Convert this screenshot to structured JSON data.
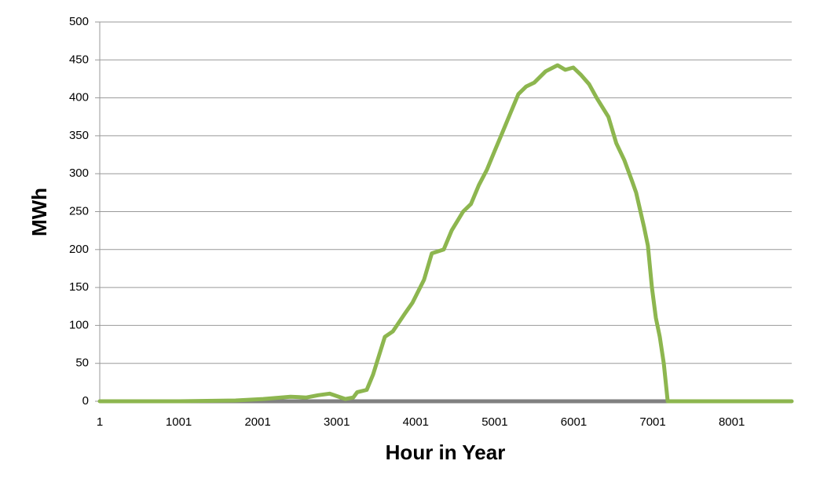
{
  "chart_data": {
    "type": "line",
    "x_label": "Hour in Year",
    "y_label": "MWh",
    "xlim": [
      1,
      8760
    ],
    "xticks": [
      1,
      1001,
      2001,
      3001,
      4001,
      5001,
      6001,
      7001,
      8001
    ],
    "ylim": [
      0,
      500
    ],
    "yticks": [
      0,
      50,
      100,
      150,
      200,
      250,
      300,
      350,
      400,
      450,
      500
    ],
    "grid": true,
    "series": [
      {
        "name": "MWh",
        "color": "#8db64f",
        "x": [
          1,
          1001,
          1720,
          2070,
          2415,
          2615,
          2765,
          2910,
          3110,
          3210,
          3260,
          3380,
          3460,
          3610,
          3710,
          3860,
          3960,
          4105,
          4205,
          4355,
          4455,
          4600,
          4700,
          4800,
          4900,
          5000,
          5100,
          5200,
          5300,
          5400,
          5500,
          5645,
          5795,
          5895,
          5995,
          6095,
          6195,
          6290,
          6440,
          6540,
          6640,
          6740,
          6790,
          6890,
          6940,
          6990,
          7040,
          7090,
          7140,
          7190,
          8000,
          8760
        ],
        "values": [
          0,
          0,
          1,
          3,
          6,
          5,
          8,
          10,
          3,
          5,
          12,
          15,
          35,
          85,
          92,
          115,
          130,
          160,
          195,
          200,
          225,
          250,
          260,
          285,
          305,
          330,
          355,
          380,
          405,
          415,
          420,
          435,
          443,
          437,
          440,
          430,
          418,
          400,
          375,
          340,
          318,
          290,
          275,
          230,
          205,
          150,
          110,
          85,
          50,
          0,
          0,
          0
        ]
      }
    ]
  }
}
